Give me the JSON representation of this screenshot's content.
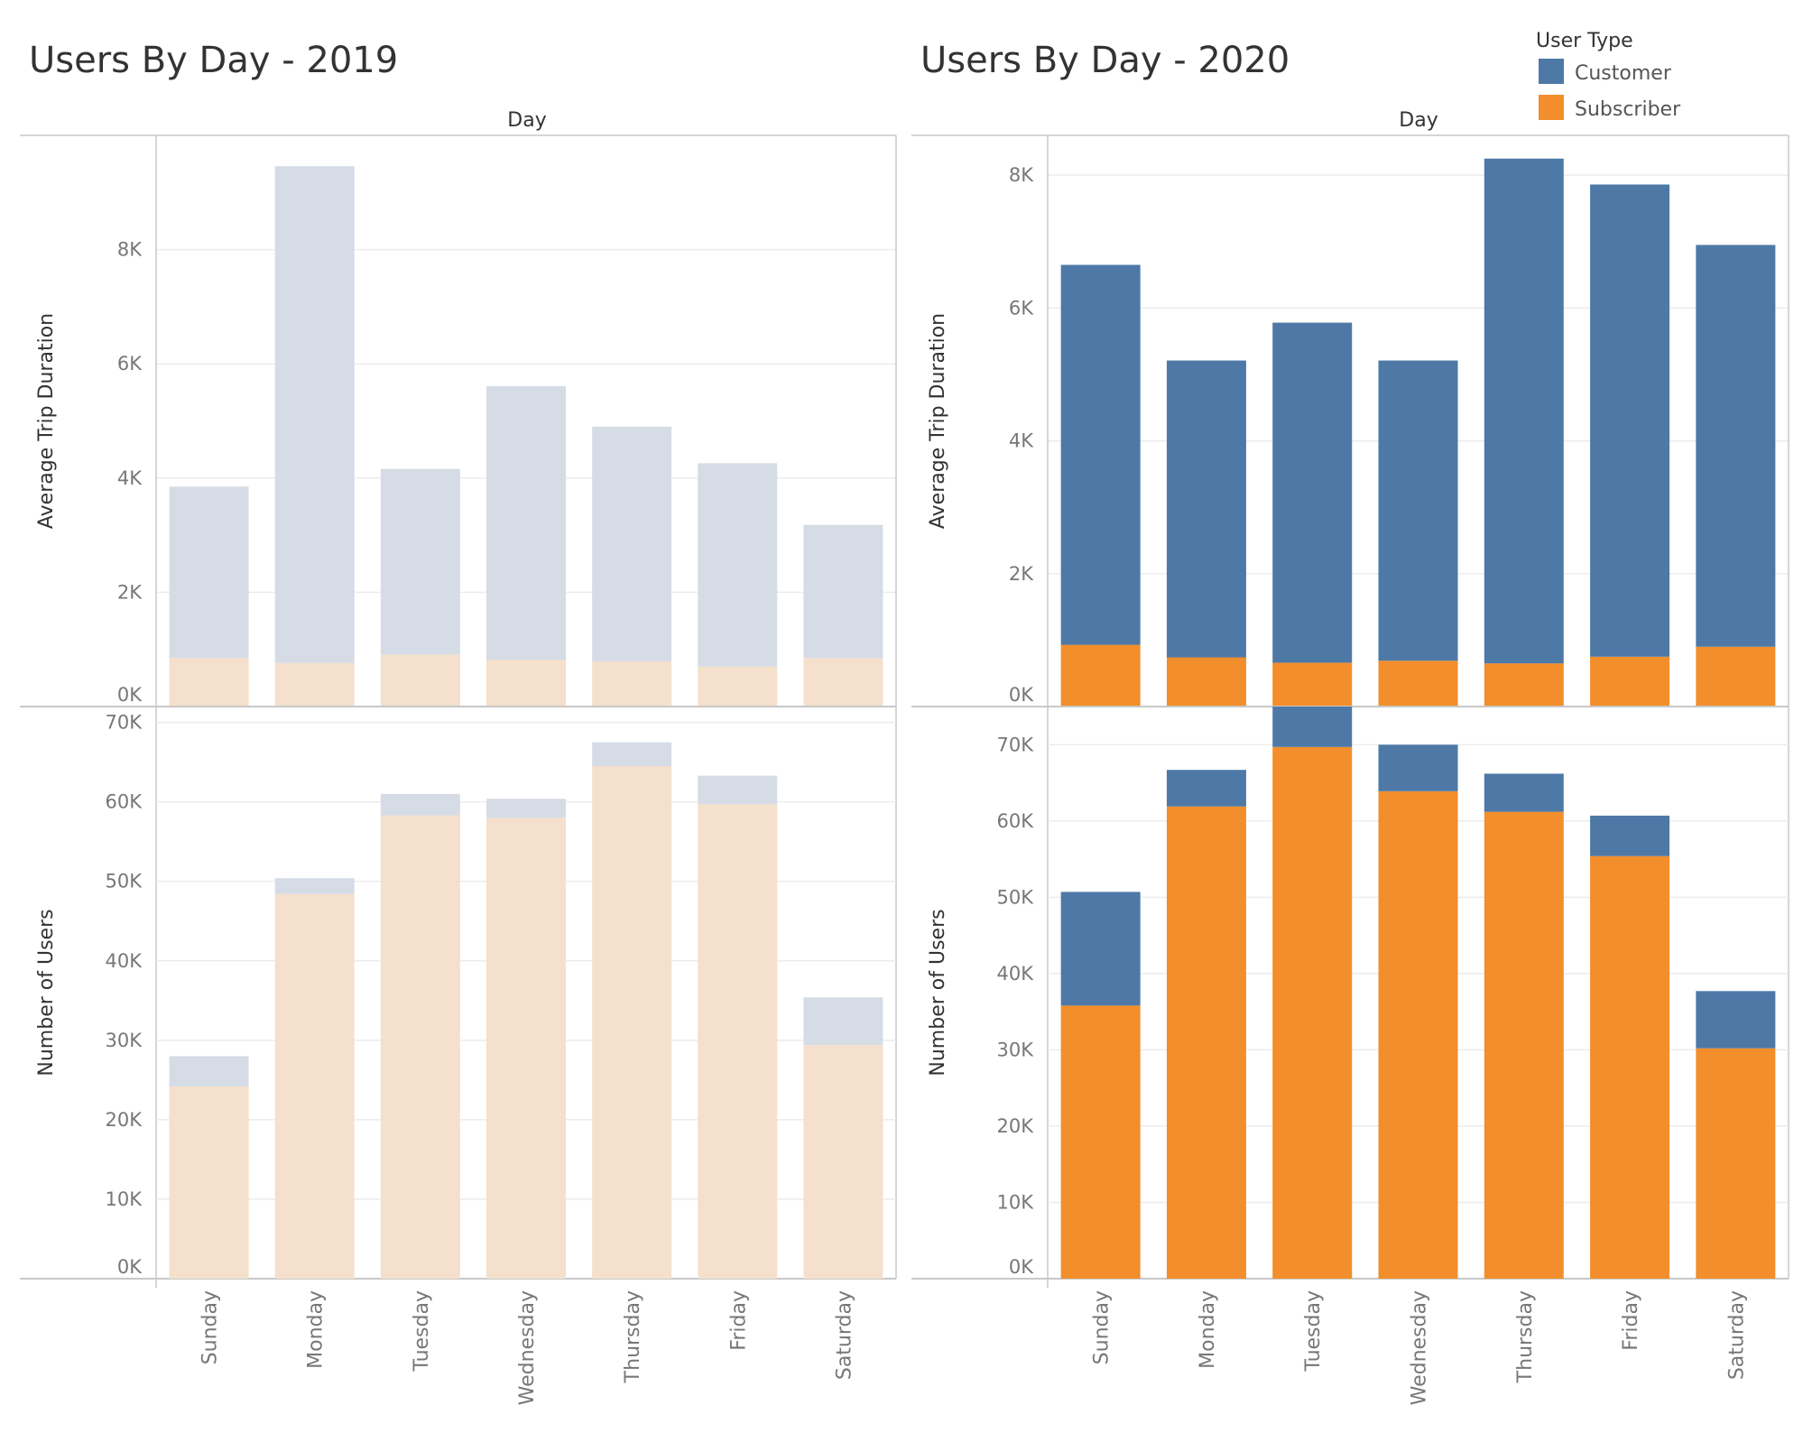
{
  "chart_data": [
    {
      "type": "bar",
      "stacked": true,
      "title": "Users By Day - 2019",
      "column_header": "Day",
      "categories": [
        "Sunday",
        "Monday",
        "Tuesday",
        "Wednesday",
        "Thursday",
        "Friday",
        "Saturday"
      ],
      "faded": true,
      "panels": [
        {
          "ylabel": "Average Trip Duration",
          "ylim": [
            0,
            10000
          ],
          "yticks": [
            0,
            2000,
            4000,
            6000,
            8000
          ],
          "ytick_labels": [
            "0K",
            "2K",
            "4K",
            "6K",
            "8K"
          ],
          "series": [
            {
              "name": "Subscriber",
              "values": [
                850,
                760,
                910,
                820,
                790,
                700,
                850
              ]
            },
            {
              "name": "Customer",
              "values": [
                3000,
                8700,
                3250,
                4790,
                4110,
                3560,
                2330
              ]
            }
          ]
        },
        {
          "ylabel": "Number of Users",
          "ylim": [
            0,
            72000
          ],
          "yticks": [
            0,
            10000,
            20000,
            30000,
            40000,
            50000,
            60000,
            70000
          ],
          "ytick_labels": [
            "0K",
            "10K",
            "20K",
            "30K",
            "40K",
            "50K",
            "60K",
            "70K"
          ],
          "series": [
            {
              "name": "Subscriber",
              "values": [
                24200,
                48400,
                58300,
                58000,
                64500,
                59700,
                29400
              ]
            },
            {
              "name": "Customer",
              "values": [
                3800,
                2000,
                2700,
                2400,
                3000,
                3600,
                6000
              ]
            }
          ]
        }
      ]
    },
    {
      "type": "bar",
      "stacked": true,
      "title": "Users By Day - 2020",
      "column_header": "Day",
      "categories": [
        "Sunday",
        "Monday",
        "Tuesday",
        "Wednesday",
        "Thursday",
        "Friday",
        "Saturday"
      ],
      "faded": false,
      "panels": [
        {
          "ylabel": "Average Trip Duration",
          "ylim": [
            0,
            8600
          ],
          "yticks": [
            0,
            2000,
            4000,
            6000,
            8000
          ],
          "ytick_labels": [
            "0K",
            "2K",
            "4K",
            "6K",
            "8K"
          ],
          "series": [
            {
              "name": "Subscriber",
              "values": [
                930,
                740,
                660,
                690,
                650,
                750,
                900
              ]
            },
            {
              "name": "Customer",
              "values": [
                5720,
                4470,
                5120,
                4520,
                7600,
                7110,
                6050
              ]
            }
          ]
        },
        {
          "ylabel": "Number of Users",
          "ylim": [
            0,
            75000
          ],
          "yticks": [
            0,
            10000,
            20000,
            30000,
            40000,
            50000,
            60000,
            70000
          ],
          "ytick_labels": [
            "0K",
            "10K",
            "20K",
            "30K",
            "40K",
            "50K",
            "60K",
            "70K"
          ],
          "series": [
            {
              "name": "Subscriber",
              "values": [
                35800,
                61900,
                69700,
                63900,
                61200,
                55400,
                30200
              ]
            },
            {
              "name": "Customer",
              "values": [
                14900,
                4800,
                5300,
                6100,
                5000,
                5300,
                7500
              ]
            }
          ]
        }
      ]
    }
  ],
  "legend": {
    "title": "User Type",
    "placement": "top-right",
    "items": [
      {
        "label": "Customer",
        "color": "#4e79a7"
      },
      {
        "label": "Subscriber",
        "color": "#f28e2b"
      }
    ]
  },
  "colors": {
    "customer": "#4e79a7",
    "subscriber": "#f28e2b",
    "customer_faded": "#d5dce5",
    "subscriber_faded": "#f4e0cd",
    "grid": "#ececec",
    "frame": "#c8c8c8"
  }
}
